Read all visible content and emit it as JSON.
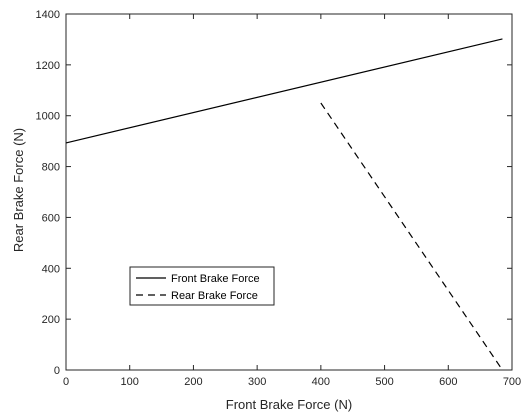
{
  "chart_data": {
    "type": "line",
    "title": "",
    "xlabel": "Front Brake Force (N)",
    "ylabel": "Rear Brake Force (N)",
    "xlim": [
      0,
      700
    ],
    "ylim": [
      0,
      1400
    ],
    "xticks": [
      0,
      100,
      200,
      300,
      400,
      500,
      600,
      700
    ],
    "yticks": [
      0,
      200,
      400,
      600,
      800,
      1000,
      1200,
      1400
    ],
    "grid": false,
    "legend_position": "lower-left",
    "series": [
      {
        "name": "Front Brake Force",
        "style": "solid",
        "color": "#000000",
        "x": [
          0,
          685
        ],
        "y": [
          893,
          1302
        ]
      },
      {
        "name": "Rear Brake Force",
        "style": "dashed",
        "color": "#000000",
        "x": [
          400,
          685
        ],
        "y": [
          1050,
          0
        ]
      }
    ]
  }
}
